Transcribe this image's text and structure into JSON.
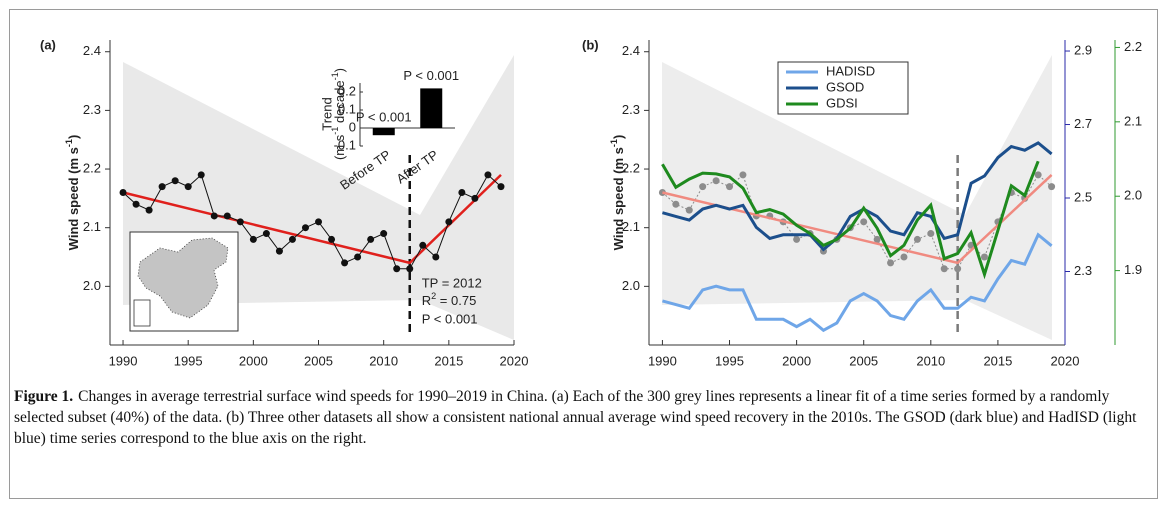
{
  "chart_data": [
    {
      "type": "line",
      "panel_label": "(a)",
      "ylabel": {
        "text": "Wind speed (m s",
        "sup": "-1",
        "end": ")"
      },
      "x": [
        1990,
        1991,
        1992,
        1993,
        1994,
        1995,
        1996,
        1997,
        1998,
        1999,
        2000,
        2001,
        2002,
        2003,
        2004,
        2005,
        2006,
        2007,
        2008,
        2009,
        2010,
        2011,
        2012,
        2013,
        2014,
        2015,
        2016,
        2017,
        2018,
        2019
      ],
      "series": [
        {
          "color": "#111111",
          "values": [
            2.16,
            2.14,
            2.13,
            2.17,
            2.18,
            2.17,
            2.19,
            2.12,
            2.12,
            2.11,
            2.08,
            2.09,
            2.06,
            2.08,
            2.1,
            2.11,
            2.08,
            2.04,
            2.05,
            2.08,
            2.09,
            2.03,
            2.03,
            2.07,
            2.05,
            2.11,
            2.16,
            2.15,
            2.19,
            2.17
          ]
        }
      ],
      "fit": {
        "color": "#e0201c",
        "x": [
          1990,
          2012,
          2019
        ],
        "values": [
          2.16,
          2.04,
          2.19
        ]
      },
      "tp_line": {
        "x": 2012,
        "color": "#111111"
      },
      "annotations": [
        "TP = 2012",
        {
          "base": "R",
          "sup": "2",
          "text": " = 0.75"
        },
        "P < 0.001"
      ],
      "xlim": [
        1989,
        2020
      ],
      "xticks": [
        1990,
        1995,
        2000,
        2005,
        2010,
        2015,
        2020
      ],
      "ylim": [
        1.9,
        2.42
      ],
      "yticks": [
        {
          "value": 2,
          "label": "2.0"
        },
        2.1,
        2.2,
        2.3,
        2.4
      ],
      "inset": {
        "type": "bar",
        "categories": [
          "Before TP",
          "After TP"
        ],
        "values": [
          -0.04,
          0.22
        ],
        "color": "#000000",
        "ylabel": [
          "Trend",
          {
            "text": "(m s",
            "sup": "-1",
            "mid": " decade",
            "sup2": "-1",
            "end": ")"
          }
        ],
        "bar_annotations": [
          "P < 0.001",
          "P < 0.001"
        ],
        "ylim": [
          -0.1,
          0.25
        ],
        "yticks": [
          -0.1,
          0,
          0.1,
          0.2
        ]
      }
    },
    {
      "type": "line",
      "panel_label": "(b)",
      "ylabel": {
        "text": "Wind speed (m s",
        "sup": "-1",
        "end": ")"
      },
      "x": [
        1990,
        1991,
        1992,
        1993,
        1994,
        1995,
        1996,
        1997,
        1998,
        1999,
        2000,
        2001,
        2002,
        2003,
        2004,
        2005,
        2006,
        2007,
        2008,
        2009,
        2010,
        2011,
        2012,
        2013,
        2014,
        2015,
        2016,
        2017,
        2018,
        2019
      ],
      "points": {
        "color": "#8c8c8c",
        "values": [
          2.16,
          2.14,
          2.13,
          2.17,
          2.18,
          2.17,
          2.19,
          2.12,
          2.12,
          2.11,
          2.08,
          2.09,
          2.06,
          2.08,
          2.1,
          2.11,
          2.08,
          2.04,
          2.05,
          2.08,
          2.09,
          2.03,
          2.03,
          2.07,
          2.05,
          2.11,
          2.16,
          2.15,
          2.19,
          2.17
        ]
      },
      "fit": {
        "color": "#f08a80",
        "x": [
          1990,
          2012,
          2019
        ],
        "values": [
          2.16,
          2.04,
          2.19
        ]
      },
      "tp_line": {
        "x": 2012,
        "color": "#7a7a7a"
      },
      "series": [
        {
          "name": "HADISD",
          "color": "#6fa6e8",
          "axis": "y2",
          "values": [
            2.22,
            2.21,
            2.2,
            2.25,
            2.26,
            2.25,
            2.25,
            2.17,
            2.17,
            2.17,
            2.15,
            2.17,
            2.14,
            2.16,
            2.22,
            2.24,
            2.22,
            2.18,
            2.17,
            2.22,
            2.25,
            2.2,
            2.2,
            2.23,
            2.22,
            2.28,
            2.33,
            2.32,
            2.4,
            2.37
          ]
        },
        {
          "name": "GSOD",
          "color": "#1c4f8c",
          "axis": "y2",
          "values": [
            2.46,
            2.45,
            2.44,
            2.47,
            2.48,
            2.47,
            2.48,
            2.42,
            2.39,
            2.4,
            2.4,
            2.4,
            2.36,
            2.39,
            2.45,
            2.47,
            2.45,
            2.41,
            2.4,
            2.46,
            2.45,
            2.39,
            2.4,
            2.54,
            2.56,
            2.61,
            2.64,
            2.63,
            2.65,
            2.62
          ]
        },
        {
          "name": "GDSI",
          "color": "#1e8a1e",
          "axis": "y3",
          "values": [
            2.043,
            2.012,
            2.023,
            2.031,
            2.03,
            2.026,
            2.011,
            1.978,
            1.982,
            1.976,
            1.961,
            1.95,
            1.934,
            1.942,
            1.957,
            1.984,
            1.957,
            1.92,
            1.934,
            1.968,
            1.988,
            1.916,
            1.923,
            1.951,
            1.895,
            1.954,
            2.014,
            2.001,
            2.047,
            null
          ]
        }
      ],
      "legend": "upper center",
      "xlim": [
        1989,
        2020
      ],
      "xticks": [
        1990,
        1995,
        2000,
        2005,
        2010,
        2015,
        2020
      ],
      "ylim": [
        1.9,
        2.42
      ],
      "yticks": [
        {
          "value": 2,
          "label": "2.0"
        },
        2.1,
        2.2,
        2.3,
        2.4
      ],
      "y2lim": [
        2.1,
        2.93
      ],
      "y2ticks": [
        2.3,
        2.5,
        2.7,
        2.9
      ],
      "y2color": "#2a2aa8",
      "y3lim": [
        1.8,
        2.21
      ],
      "y3ticks": [
        1.9,
        {
          "value": 2,
          "label": "2.0"
        },
        2.1,
        2.2
      ],
      "y3color": "#2f9a2f"
    }
  ],
  "caption": {
    "label": "Figure 1.",
    "text": "Changes in average terrestrial surface wind speeds for 1990–2019 in China. (a) Each of the 300 grey lines represents a linear fit of a time series formed by a randomly selected subset (40%) of the data. (b) Three other datasets all show a consistent national annual average wind speed recovery in the 2010s. The GSOD (dark blue) and HadISD (light blue) time series correspond to the blue axis on the right."
  }
}
